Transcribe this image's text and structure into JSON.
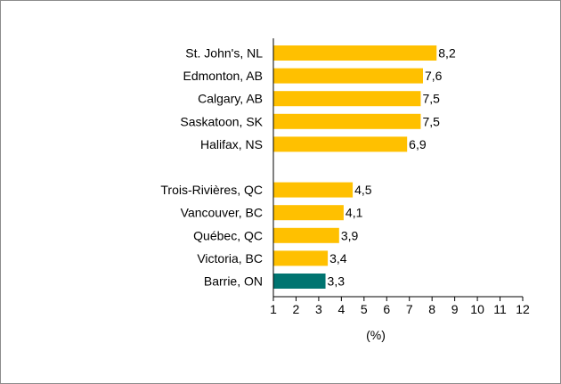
{
  "chart_data": {
    "type": "bar",
    "orientation": "horizontal",
    "title": "",
    "xlabel": "(%)",
    "ylabel": "",
    "xlim": [
      1,
      12
    ],
    "x_ticks": [
      "1",
      "2",
      "3",
      "4",
      "5",
      "6",
      "7",
      "8",
      "9",
      "10",
      "11",
      "12"
    ],
    "grid": false,
    "legend": "none",
    "categories": [
      "St. John's, NL",
      "Edmonton, AB",
      "Calgary, AB",
      "Saskatoon, SK",
      "Halifax, NS",
      "",
      "Trois-Rivières, QC",
      "Vancouver, BC",
      "Québec, QC",
      "Victoria, BC",
      "Barrie, ON"
    ],
    "values": [
      8.2,
      7.6,
      7.5,
      7.5,
      6.9,
      null,
      4.5,
      4.1,
      3.9,
      3.4,
      3.3
    ],
    "value_labels": [
      "8,2",
      "7,6",
      "7,5",
      "7,5",
      "6,9",
      "",
      "4,5",
      "4,1",
      "3,9",
      "3,4",
      "3,3"
    ],
    "bar_colors": [
      "#ffc000",
      "#ffc000",
      "#ffc000",
      "#ffc000",
      "#ffc000",
      "",
      "#ffc000",
      "#ffc000",
      "#ffc000",
      "#ffc000",
      "#007470"
    ]
  },
  "colors": {
    "highlight": "#ffc000",
    "focus": "#007470",
    "axis": "#000000",
    "frame": "#8c8c8c"
  }
}
